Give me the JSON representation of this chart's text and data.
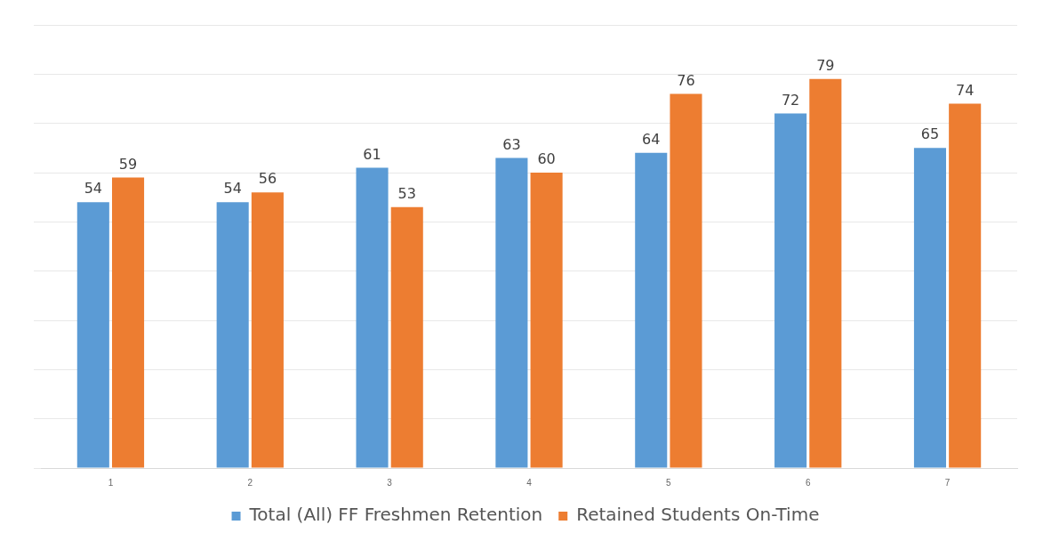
{
  "chart_data": {
    "type": "bar",
    "categories": [
      "1",
      "2",
      "3",
      "4",
      "5",
      "6",
      "7"
    ],
    "series": [
      {
        "name": "Total (All) FF Freshmen Retention",
        "color": "#5b9bd5",
        "values": [
          54,
          54,
          61,
          63,
          64,
          72,
          65
        ]
      },
      {
        "name": "Retained Students On-Time",
        "color": "#ed7d31",
        "values": [
          59,
          56,
          53,
          60,
          76,
          79,
          74
        ]
      }
    ],
    "ylim": [
      0,
      90
    ],
    "yticks": [
      {
        "value": 0,
        "label": null
      },
      {
        "value": 10,
        "label": null
      },
      {
        "value": 20,
        "label": null
      },
      {
        "value": 30,
        "label": null
      },
      {
        "value": 40,
        "label": null
      },
      {
        "value": 50,
        "label": null
      },
      {
        "value": 60,
        "label": null
      },
      {
        "value": 70,
        "label": null
      },
      {
        "value": 80,
        "label": null
      },
      {
        "value": 90,
        "label": null
      }
    ],
    "grid": "y",
    "legend": "bottom",
    "data_labels": true,
    "tick_labels": "x"
  }
}
